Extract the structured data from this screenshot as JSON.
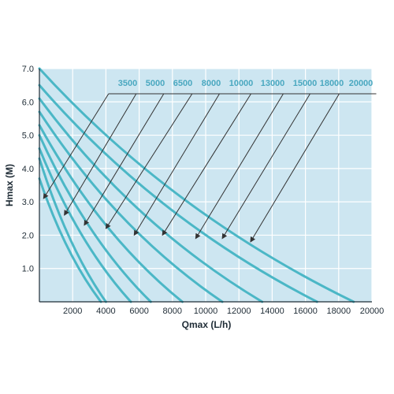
{
  "chart_data": {
    "type": "line",
    "title": "",
    "xlabel": "Qmax (L/h)",
    "ylabel": "Hmax (M)",
    "xlim": [
      0,
      20000
    ],
    "ylim": [
      0,
      7.0
    ],
    "x_ticks": [
      "2000",
      "4000",
      "6000",
      "8000",
      "10000",
      "12000",
      "14000",
      "16000",
      "18000",
      "20000"
    ],
    "y_ticks": [
      "1.0",
      "2.0",
      "3.0",
      "4.0",
      "5.0",
      "6.0",
      "7.0"
    ],
    "grid": true,
    "legend_placement": "top-right, labels with leader arrows to each curve",
    "series": [
      {
        "name": "3500",
        "x": [
          0,
          3700
        ],
        "y": [
          3.7,
          0
        ]
      },
      {
        "name": "5000",
        "x": [
          0,
          4000
        ],
        "y": [
          4.3,
          0
        ]
      },
      {
        "name": "6500",
        "x": [
          0,
          5500
        ],
        "y": [
          4.6,
          0
        ]
      },
      {
        "name": "8000",
        "x": [
          0,
          6700
        ],
        "y": [
          5.0,
          0
        ]
      },
      {
        "name": "10000",
        "x": [
          0,
          8600
        ],
        "y": [
          5.3,
          0
        ]
      },
      {
        "name": "13000",
        "x": [
          0,
          11000
        ],
        "y": [
          5.7,
          0
        ]
      },
      {
        "name": "15000",
        "x": [
          0,
          13400
        ],
        "y": [
          6.1,
          0
        ]
      },
      {
        "name": "18000",
        "x": [
          0,
          16700
        ],
        "y": [
          6.5,
          0
        ]
      },
      {
        "name": "20000",
        "x": [
          0,
          18900
        ],
        "y": [
          7.0,
          0
        ]
      }
    ],
    "arrow_targets": [
      {
        "series": "3500",
        "x": 250,
        "y": 3.1
      },
      {
        "series": "5000",
        "x": 1500,
        "y": 2.6
      },
      {
        "series": "6500",
        "x": 2700,
        "y": 2.3
      },
      {
        "series": "8000",
        "x": 4000,
        "y": 2.2
      },
      {
        "series": "10000",
        "x": 5700,
        "y": 2.0
      },
      {
        "series": "13000",
        "x": 7400,
        "y": 2.0
      },
      {
        "series": "15000",
        "x": 9400,
        "y": 1.9
      },
      {
        "series": "18000",
        "x": 11000,
        "y": 1.9
      },
      {
        "series": "20000",
        "x": 12700,
        "y": 1.8
      }
    ],
    "colors": {
      "background": "#cde6f1",
      "grid": "#ffffff",
      "curve": "#4bb7c6",
      "legend_text": "#4aa8c0",
      "arrow": "#333333",
      "axis": "#1f2c36"
    }
  }
}
